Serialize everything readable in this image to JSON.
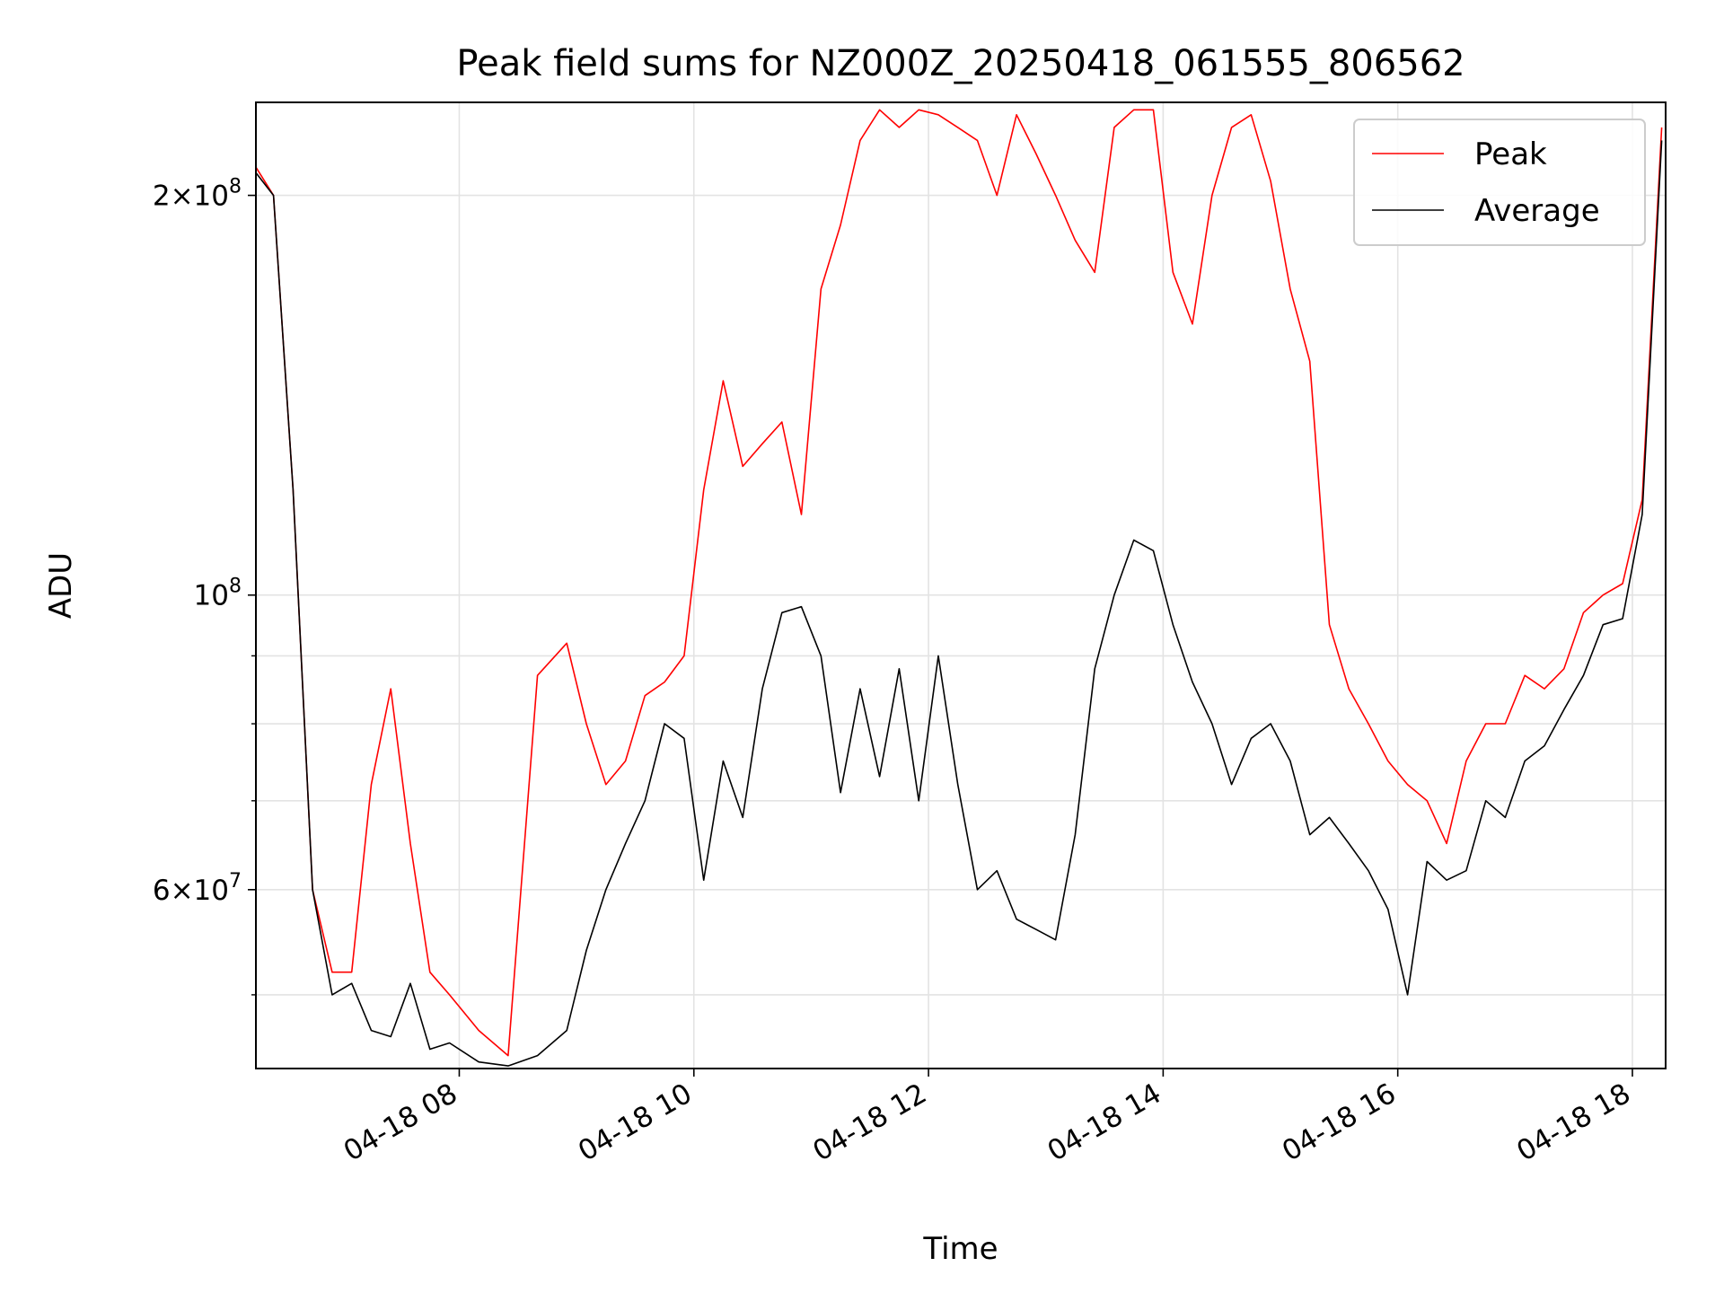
{
  "chart_data": {
    "type": "line",
    "title": "Peak field sums for NZ000Z_20250418_061555_806562",
    "xlabel": "Time",
    "ylabel": "ADU",
    "x_range": [
      "2025-04-18 06:16",
      "2025-04-18 18:17"
    ],
    "ylim": [
      44000000,
      235000000
    ],
    "y_scale": "log",
    "grid": true,
    "legend_position": "top-right",
    "x_ticks": [
      {
        "time": "2025-04-18 08:00",
        "label": "04-18 08"
      },
      {
        "time": "2025-04-18 10:00",
        "label": "04-18 10"
      },
      {
        "time": "2025-04-18 12:00",
        "label": "04-18 12"
      },
      {
        "time": "2025-04-18 14:00",
        "label": "04-18 14"
      },
      {
        "time": "2025-04-18 16:00",
        "label": "04-18 16"
      },
      {
        "time": "2025-04-18 18:00",
        "label": "04-18 18"
      }
    ],
    "y_ticks": [
      {
        "value": 200000000,
        "base": "2",
        "exp": "8",
        "mult": true
      },
      {
        "value": 100000000,
        "base": "10",
        "exp": "8",
        "mult": false
      },
      {
        "value": 60000000,
        "base": "6",
        "exp": "7",
        "mult": true
      }
    ],
    "y_minor_ticks": [
      50000000,
      70000000,
      80000000,
      90000000
    ],
    "series": [
      {
        "name": "Average",
        "color": "#000000",
        "x": [
          "2025-04-18 06:16",
          "2025-04-18 06:25",
          "2025-04-18 06:35",
          "2025-04-18 06:45",
          "2025-04-18 06:55",
          "2025-04-18 07:05",
          "2025-04-18 07:15",
          "2025-04-18 07:25",
          "2025-04-18 07:35",
          "2025-04-18 07:45",
          "2025-04-18 07:55",
          "2025-04-18 08:10",
          "2025-04-18 08:25",
          "2025-04-18 08:40",
          "2025-04-18 08:55",
          "2025-04-18 09:05",
          "2025-04-18 09:15",
          "2025-04-18 09:25",
          "2025-04-18 09:35",
          "2025-04-18 09:45",
          "2025-04-18 09:55",
          "2025-04-18 10:05",
          "2025-04-18 10:15",
          "2025-04-18 10:25",
          "2025-04-18 10:35",
          "2025-04-18 10:45",
          "2025-04-18 10:55",
          "2025-04-18 11:05",
          "2025-04-18 11:15",
          "2025-04-18 11:25",
          "2025-04-18 11:35",
          "2025-04-18 11:45",
          "2025-04-18 11:55",
          "2025-04-18 12:05",
          "2025-04-18 12:15",
          "2025-04-18 12:25",
          "2025-04-18 12:35",
          "2025-04-18 12:45",
          "2025-04-18 12:55",
          "2025-04-18 13:05",
          "2025-04-18 13:15",
          "2025-04-18 13:25",
          "2025-04-18 13:35",
          "2025-04-18 13:45",
          "2025-04-18 13:55",
          "2025-04-18 14:05",
          "2025-04-18 14:15",
          "2025-04-18 14:25",
          "2025-04-18 14:35",
          "2025-04-18 14:45",
          "2025-04-18 14:55",
          "2025-04-18 15:05",
          "2025-04-18 15:15",
          "2025-04-18 15:25",
          "2025-04-18 15:35",
          "2025-04-18 15:45",
          "2025-04-18 15:55",
          "2025-04-18 16:05",
          "2025-04-18 16:15",
          "2025-04-18 16:25",
          "2025-04-18 16:35",
          "2025-04-18 16:45",
          "2025-04-18 16:55",
          "2025-04-18 17:05",
          "2025-04-18 17:15",
          "2025-04-18 17:25",
          "2025-04-18 17:35",
          "2025-04-18 17:45",
          "2025-04-18 17:55",
          "2025-04-18 18:05",
          "2025-04-18 18:15"
        ],
        "values": [
          208000000,
          200000000,
          120000000,
          60000000,
          50000000,
          51000000,
          47000000,
          46500000,
          51000000,
          45500000,
          46000000,
          44500000,
          44200000,
          45000000,
          47000000,
          54000000,
          60000000,
          65000000,
          70000000,
          80000000,
          78000000,
          61000000,
          75000000,
          68000000,
          85000000,
          97000000,
          98000000,
          90000000,
          71000000,
          85000000,
          73000000,
          88000000,
          70000000,
          90000000,
          72000000,
          60000000,
          62000000,
          57000000,
          56000000,
          55000000,
          66000000,
          88000000,
          100000000,
          110000000,
          108000000,
          95000000,
          86000000,
          80000000,
          72000000,
          78000000,
          80000000,
          75000000,
          66000000,
          68000000,
          65000000,
          62000000,
          58000000,
          50000000,
          63000000,
          61000000,
          62000000,
          70000000,
          68000000,
          75000000,
          77000000,
          82000000,
          87000000,
          95000000,
          96000000,
          115000000,
          220000000
        ]
      },
      {
        "name": "Peak",
        "color": "#ff0000",
        "x": [
          "2025-04-18 06:16",
          "2025-04-18 06:25",
          "2025-04-18 06:35",
          "2025-04-18 06:45",
          "2025-04-18 06:55",
          "2025-04-18 07:05",
          "2025-04-18 07:15",
          "2025-04-18 07:25",
          "2025-04-18 07:35",
          "2025-04-18 07:45",
          "2025-04-18 07:55",
          "2025-04-18 08:10",
          "2025-04-18 08:25",
          "2025-04-18 08:40",
          "2025-04-18 08:55",
          "2025-04-18 09:05",
          "2025-04-18 09:15",
          "2025-04-18 09:25",
          "2025-04-18 09:35",
          "2025-04-18 09:45",
          "2025-04-18 09:55",
          "2025-04-18 10:05",
          "2025-04-18 10:15",
          "2025-04-18 10:25",
          "2025-04-18 10:35",
          "2025-04-18 10:45",
          "2025-04-18 10:55",
          "2025-04-18 11:05",
          "2025-04-18 11:15",
          "2025-04-18 11:25",
          "2025-04-18 11:35",
          "2025-04-18 11:45",
          "2025-04-18 11:55",
          "2025-04-18 12:05",
          "2025-04-18 12:15",
          "2025-04-18 12:25",
          "2025-04-18 12:35",
          "2025-04-18 12:45",
          "2025-04-18 12:55",
          "2025-04-18 13:05",
          "2025-04-18 13:15",
          "2025-04-18 13:25",
          "2025-04-18 13:35",
          "2025-04-18 13:45",
          "2025-04-18 13:55",
          "2025-04-18 14:05",
          "2025-04-18 14:15",
          "2025-04-18 14:25",
          "2025-04-18 14:35",
          "2025-04-18 14:45",
          "2025-04-18 14:55",
          "2025-04-18 15:05",
          "2025-04-18 15:15",
          "2025-04-18 15:25",
          "2025-04-18 15:35",
          "2025-04-18 15:45",
          "2025-04-18 15:55",
          "2025-04-18 16:05",
          "2025-04-18 16:15",
          "2025-04-18 16:25",
          "2025-04-18 16:35",
          "2025-04-18 16:45",
          "2025-04-18 16:55",
          "2025-04-18 17:05",
          "2025-04-18 17:15",
          "2025-04-18 17:25",
          "2025-04-18 17:35",
          "2025-04-18 17:45",
          "2025-04-18 17:55",
          "2025-04-18 18:05",
          "2025-04-18 18:15"
        ],
        "values": [
          210000000,
          200000000,
          120000000,
          60000000,
          52000000,
          52000000,
          72000000,
          85000000,
          65000000,
          52000000,
          50000000,
          47000000,
          45000000,
          87000000,
          92000000,
          80000000,
          72000000,
          75000000,
          84000000,
          86000000,
          90000000,
          120000000,
          145000000,
          125000000,
          130000000,
          135000000,
          115000000,
          170000000,
          190000000,
          220000000,
          232000000,
          225000000,
          232000000,
          230000000,
          225000000,
          220000000,
          200000000,
          230000000,
          215000000,
          200000000,
          185000000,
          175000000,
          225000000,
          232000000,
          232000000,
          175000000,
          160000000,
          200000000,
          225000000,
          230000000,
          205000000,
          170000000,
          150000000,
          95000000,
          85000000,
          80000000,
          75000000,
          72000000,
          70000000,
          65000000,
          75000000,
          80000000,
          80000000,
          87000000,
          85000000,
          88000000,
          97000000,
          100000000,
          102000000,
          118000000,
          225000000
        ]
      }
    ]
  }
}
